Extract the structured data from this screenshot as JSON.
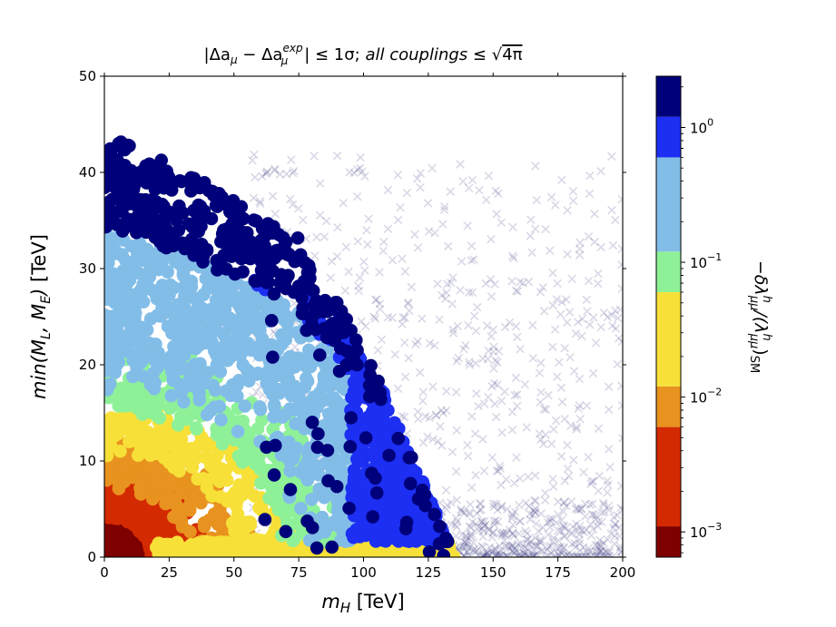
{
  "chart_data": {
    "type": "scatter",
    "title": "|Δa_μ − Δa_μ^exp| ≤ 1σ;  all couplings ≤ √4π",
    "title_parts": {
      "abs_open": "|",
      "delta1": "Δa",
      "mu1": "μ",
      "minus": " − ",
      "delta2": "Δa",
      "sup_exp": "exp",
      "mu2": "μ",
      "abs_close_rel": "| ≤ 1σ;  ",
      "italic_phrase": "all couplings",
      "leq": " ≤ ",
      "root_arg": "4π"
    },
    "xlabel": "m_H [TeV]",
    "xlabel_parts": {
      "var": "m",
      "sub": "H",
      "unit": " [TeV]"
    },
    "ylabel": "min(M_L, M_E) [TeV]",
    "ylabel_parts": {
      "fn": "min(M",
      "sub1": "L",
      "mid": ", M",
      "sub2": "E",
      "close": ")",
      "unit": " [TeV]"
    },
    "xlim": [
      0,
      200
    ],
    "ylim": [
      0,
      50
    ],
    "x_ticks": [
      0,
      25,
      50,
      75,
      100,
      125,
      150,
      175,
      200
    ],
    "y_ticks": [
      0,
      10,
      20,
      30,
      40,
      50
    ],
    "x_tick_labels": [
      "0",
      "25",
      "50",
      "75",
      "100",
      "125",
      "150",
      "175",
      "200"
    ],
    "y_tick_labels": [
      "0",
      "10",
      "20",
      "30",
      "40",
      "50"
    ],
    "grid": false,
    "legend": "none",
    "colorbar": {
      "label": "−δλ^h_μμ/(λ^h_μμ)_SM",
      "label_parts": {
        "minus_delta": "−δλ",
        "sup_h1": "h",
        "sub_mumu1": "μμ",
        "slash_paren": "/(λ",
        "sup_h2": "h",
        "sub_mumu2": "μμ",
        "paren_close": ")",
        "sub_sm": "SM"
      },
      "scale": "log",
      "bins": [
        {
          "from": 0.00065,
          "to": 0.0011,
          "color": "#7f0000"
        },
        {
          "from": 0.0011,
          "to": 0.006,
          "color": "#d42a02"
        },
        {
          "from": 0.006,
          "to": 0.012,
          "color": "#e8931f"
        },
        {
          "from": 0.012,
          "to": 0.06,
          "color": "#f7e139"
        },
        {
          "from": 0.06,
          "to": 0.12,
          "color": "#8ef198"
        },
        {
          "from": 0.12,
          "to": 0.6,
          "color": "#82bde8"
        },
        {
          "from": 0.6,
          "to": 1.2,
          "color": "#1c2ff2"
        },
        {
          "from": 1.2,
          "to": 2.4,
          "color": "#00007a"
        }
      ],
      "ticks": [
        {
          "value": 0.001,
          "base": "10",
          "exp": "−3"
        },
        {
          "value": 0.01,
          "base": "10",
          "exp": "−2"
        },
        {
          "value": 0.1,
          "base": "10",
          "exp": "−1"
        },
        {
          "value": 1,
          "base": "10",
          "exp": "0"
        }
      ]
    },
    "series": [
      {
        "name": "excluded points",
        "marker": "x",
        "color": "#2e2e7a",
        "opacity": 0.18,
        "count": 1100,
        "region": "x from about 55 to 200 TeV, y from 0 to about 42 TeV, densest along y < 6"
      },
      {
        "name": "allowed points",
        "marker": "circle",
        "count": 3100,
        "region": "filled band below an edge from (0, 44) through (75, 33) and (100, 22) to (135, 0); color varies with the colorbar value: dark red near origin, red/orange/yellow bands up to about m_H = 60, light blue and green in the middle, blue and navy toward the outer edge"
      }
    ]
  }
}
